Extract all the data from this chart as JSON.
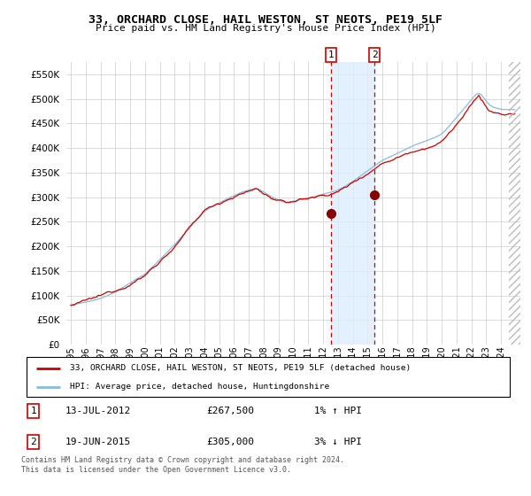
{
  "title": "33, ORCHARD CLOSE, HAIL WESTON, ST NEOTS, PE19 5LF",
  "subtitle": "Price paid vs. HM Land Registry's House Price Index (HPI)",
  "ytick_vals": [
    0,
    50000,
    100000,
    150000,
    200000,
    250000,
    300000,
    350000,
    400000,
    450000,
    500000,
    550000
  ],
  "xlim": [
    1994.7,
    2025.3
  ],
  "ylim": [
    0,
    575000
  ],
  "purchase1_date": 2012.53,
  "purchase1_price": 267500,
  "purchase2_date": 2015.47,
  "purchase2_price": 305000,
  "legend_line1": "33, ORCHARD CLOSE, HAIL WESTON, ST NEOTS, PE19 5LF (detached house)",
  "legend_line2": "HPI: Average price, detached house, Huntingdonshire",
  "table_row1_num": "1",
  "table_row1_date": "13-JUL-2012",
  "table_row1_price": "£267,500",
  "table_row1_hpi": "1% ↑ HPI",
  "table_row2_num": "2",
  "table_row2_date": "19-JUN-2015",
  "table_row2_price": "£305,000",
  "table_row2_hpi": "3% ↓ HPI",
  "footnote": "Contains HM Land Registry data © Crown copyright and database right 2024.\nThis data is licensed under the Open Government Licence v3.0.",
  "red_color": "#cc0000",
  "blue_color": "#88bbdd",
  "shade_color": "#ddeeff"
}
